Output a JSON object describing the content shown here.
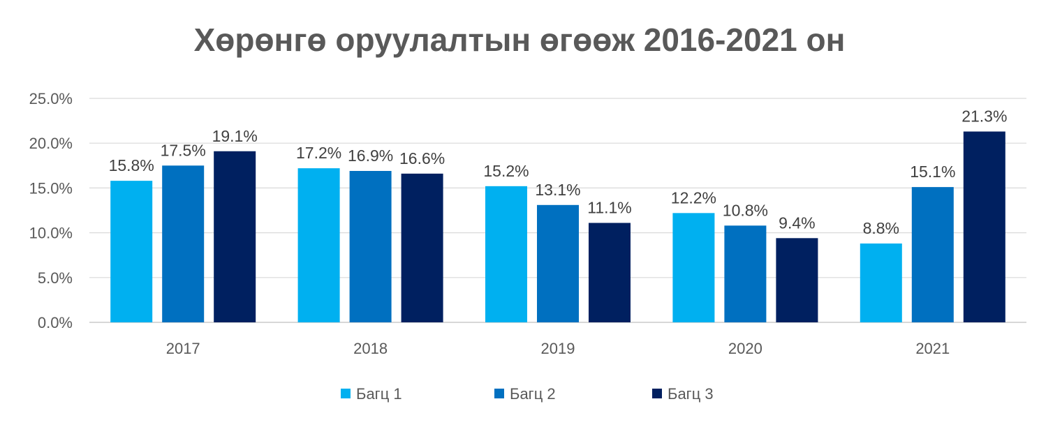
{
  "chart_data": {
    "type": "bar",
    "title": "Хөрөнгө оруулалтын өгөөж 2016-2021 он",
    "categories": [
      "2017",
      "2018",
      "2019",
      "2020",
      "2021"
    ],
    "series": [
      {
        "name": "Багц 1",
        "color": "#00B0F0",
        "values": [
          15.8,
          17.2,
          15.2,
          12.2,
          8.8
        ],
        "labels": [
          "15.8%",
          "17.2%",
          "15.2%",
          "12.2%",
          "8.8%"
        ]
      },
      {
        "name": "Багц 2",
        "color": "#0070C0",
        "values": [
          17.5,
          16.9,
          13.1,
          10.8,
          15.1
        ],
        "labels": [
          "17.5%",
          "16.9%",
          "13.1%",
          "10.8%",
          "15.1%"
        ]
      },
      {
        "name": "Багц 3",
        "color": "#002060",
        "values": [
          19.1,
          16.6,
          11.1,
          9.4,
          21.3
        ],
        "labels": [
          "19.1%",
          "16.6%",
          "11.1%",
          "9.4%",
          "21.3%"
        ]
      }
    ],
    "ylim": [
      0,
      25
    ],
    "yticks": [
      0,
      5,
      10,
      15,
      20,
      25
    ],
    "ytick_labels": [
      "0.0%",
      "5.0%",
      "10.0%",
      "15.0%",
      "20.0%",
      "25.0%"
    ],
    "grid": true,
    "legend": "bottom"
  }
}
